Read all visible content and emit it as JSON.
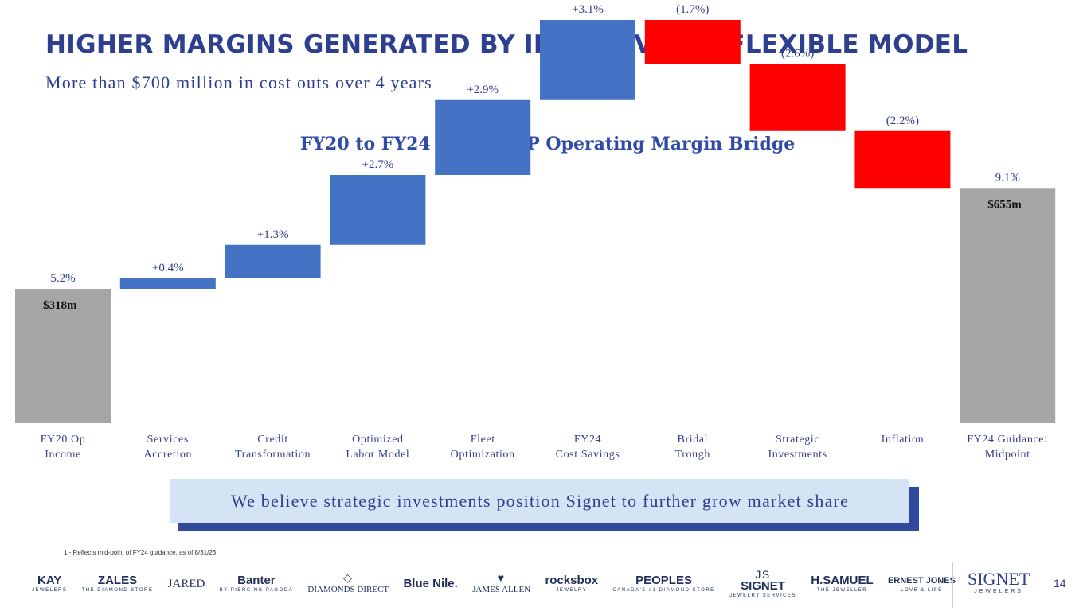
{
  "header": {
    "title": "HIGHER MARGINS GENERATED BY INITIATIVES & FLEXIBLE MODEL",
    "subtitle": "More than $700 million in cost outs over 4 years"
  },
  "chart_data": {
    "type": "waterfall",
    "title": "FY20 to FY24 Non-GAAP Operating Margin Bridge",
    "unit": "% operating margin",
    "ylim": [
      0,
      10
    ],
    "categories": [
      "FY20 Op\nIncome",
      "Services\nAccretion",
      "Credit\nTransformation",
      "Optimized\nLabor Model",
      "Fleet\nOptimization",
      "FY24\nCost Savings",
      "Bridal\nTrough",
      "Strategic\nInvestments",
      "Inflation",
      "FY24 Guidance\nMidpoint"
    ],
    "values": [
      5.2,
      0.4,
      1.3,
      2.7,
      2.9,
      3.1,
      -1.7,
      -2.6,
      -2.2,
      9.1
    ],
    "kinds": [
      "total",
      "increase",
      "increase",
      "increase",
      "increase",
      "increase",
      "decrease",
      "decrease",
      "decrease",
      "total"
    ],
    "value_labels": [
      "5.2%",
      "+0.4%",
      "+1.3%",
      "+2.7%",
      "+2.9%",
      "+3.1%",
      "(1.7%)",
      "(2.6%)",
      "(2.2%)",
      "9.1%"
    ],
    "total_inner_labels": [
      "$318m",
      "",
      "",
      "",
      "",
      "",
      "",
      "",
      "",
      "$655m"
    ],
    "footnote_marker_on_last": "1",
    "colors": {
      "total": "#a6a6a6",
      "increase": "#4472c4",
      "decrease": "#ff0000",
      "label": "#2f3f8f"
    }
  },
  "banner": {
    "text": "We believe strategic investments position Signet to further grow market share"
  },
  "footnote": "1 - Reflects mid-point of FY24 guidance, as of 8/31/23",
  "brands": [
    {
      "name": "KAY",
      "sub": "JEWELERS",
      "icon": ""
    },
    {
      "name": "ZALES",
      "sub": "THE DIAMOND STORE",
      "icon": ""
    },
    {
      "name": "JARED",
      "sub": "",
      "icon": ""
    },
    {
      "name": "Banter",
      "sub": "BY PIERCING PAGODA",
      "icon": ""
    },
    {
      "name": "DIAMONDS DIRECT",
      "sub": "",
      "icon": "◇"
    },
    {
      "name": "Blue Nile.",
      "sub": "",
      "icon": ""
    },
    {
      "name": "JAMES ALLEN",
      "sub": "",
      "icon": "♥"
    },
    {
      "name": "rocksbox",
      "sub": "JEWELRY",
      "icon": ""
    },
    {
      "name": "PEOPLES",
      "sub": "CANADA'S #1 DIAMOND STORE",
      "icon": ""
    },
    {
      "name": "SIGNET",
      "sub": "JEWELRY SERVICES",
      "icon": "JS"
    },
    {
      "name": "H.SAMUEL",
      "sub": "THE JEWELLER",
      "icon": ""
    },
    {
      "name": "ERNEST JONES",
      "sub": "LOVE & LIFE",
      "icon": ""
    }
  ],
  "corporate_logo": {
    "name": "SIGNET",
    "sub": "JEWELERS"
  },
  "page_number": "14"
}
